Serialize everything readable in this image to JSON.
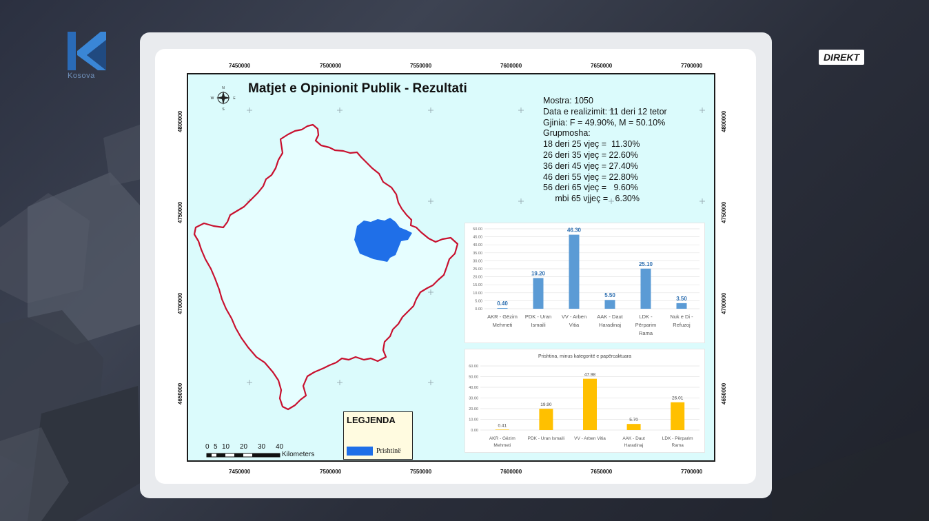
{
  "broadcast": {
    "channel_logo_text": "Kosova",
    "live_badge": "DIREKT"
  },
  "map": {
    "title": "Matjet e Opinionit Publik - Rezultati",
    "x_ticks": [
      "7450000",
      "7500000",
      "7550000",
      "7600000",
      "7650000",
      "7700000"
    ],
    "y_ticks": [
      "4800000",
      "4750000",
      "4700000",
      "4650000"
    ],
    "region_highlight_color": "#1f6fe8",
    "border_color": "#c8102e",
    "legend": {
      "title": "LEGJENDA",
      "item_label": "Prishtinë"
    },
    "scale_bar": {
      "marks": [
        "0",
        "5",
        "10",
        "20",
        "30",
        "40"
      ],
      "unit": "Kilometers"
    }
  },
  "survey_info": {
    "lines": [
      "Mostra: 1050",
      "Data e realizimit: 11 deri 12 tetor",
      "Gjinia: F = 49.90%, M = 50.10%",
      "Grupmosha:",
      "18 deri 25 vjeç =  11.30%",
      "26 deri 35 vjeç = 22.60%",
      "36 deri 45 vjeç = 27.40%",
      "46 deri 55 vjeç = 22.80%",
      "56 deri 65 vjeç =   9.60%",
      "     mbi 65 vjjeç =   6.30%"
    ]
  },
  "chart_data": [
    {
      "type": "bar",
      "title": "",
      "color": "#5b9bd5",
      "categories": [
        [
          "AKR - Gëzim",
          "Mehmeti"
        ],
        [
          "PDK - Uran",
          "Ismaili"
        ],
        [
          "VV - Arben",
          "Vitia"
        ],
        [
          "AAK - Daut",
          "Haradinaj"
        ],
        [
          "LDK -",
          "Përparim",
          "Rama"
        ],
        [
          "Nuk e Di -",
          "Refuzoj"
        ]
      ],
      "values": [
        0.4,
        19.2,
        46.3,
        5.5,
        25.1,
        3.5
      ],
      "value_labels": [
        "0.40",
        "19.20",
        "46.30",
        "5.50",
        "25.10",
        "3.50"
      ],
      "ylim": [
        0,
        50
      ],
      "y_ticks": [
        "0.00",
        "5.00",
        "10.00",
        "15.00",
        "20.00",
        "25.00",
        "30.00",
        "35.00",
        "40.00",
        "45.00",
        "50.00"
      ],
      "grid": true
    },
    {
      "type": "bar",
      "title": "Prishtina, minus kategoritë e papërcaktuara",
      "color": "#ffc000",
      "categories": [
        [
          "AKR - Gëzim",
          "Mehmeti"
        ],
        [
          "PDK - Uran Ismaili"
        ],
        [
          "VV - Arben Vitia"
        ],
        [
          "AAK - Daut",
          "Haradinaj"
        ],
        [
          "LDK - Përparim",
          "Rama"
        ]
      ],
      "values": [
        0.41,
        19.9,
        47.98,
        5.7,
        26.01
      ],
      "value_labels": [
        "0.41",
        "19.90",
        "47.98",
        "5.70",
        "26.01"
      ],
      "ylim": [
        0,
        60
      ],
      "y_ticks": [
        "0.00",
        "10.00",
        "20.00",
        "30.00",
        "40.00",
        "50.00",
        "60.00"
      ],
      "grid": true
    }
  ]
}
